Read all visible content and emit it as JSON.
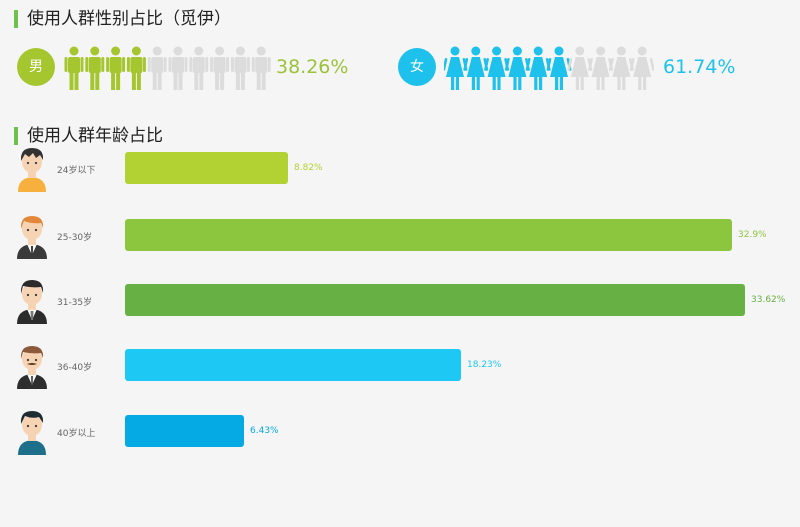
{
  "gender_section": {
    "title": "使用人群性别占比（觅伊）",
    "male": {
      "label": "男",
      "percent_text": "38.26%",
      "value": 38.26,
      "color": "#a6c630",
      "icons_total": 10,
      "icons_filled": 4
    },
    "female": {
      "label": "女",
      "percent_text": "61.74%",
      "value": 61.74,
      "color": "#1ec1ec",
      "icons_total": 10,
      "icons_filled": 6
    },
    "inactive_color": "#dcdcdc"
  },
  "age_section": {
    "title": "使用人群年龄占比"
  },
  "chart_data": {
    "type": "bar",
    "orientation": "horizontal",
    "categories": [
      "24岁以下",
      "25-30岁",
      "31-35岁",
      "36-40岁",
      "40岁以上"
    ],
    "values": [
      8.82,
      32.9,
      33.62,
      18.23,
      6.43
    ],
    "value_labels": [
      "8.82%",
      "32.9%",
      "33.62%",
      "18.23%",
      "6.43%"
    ],
    "colors": [
      "#b2d233",
      "#8cc63e",
      "#67b043",
      "#1ec8f4",
      "#05a9e4"
    ],
    "xlim": [
      0,
      33.62
    ],
    "grid": false,
    "legend": "none"
  }
}
